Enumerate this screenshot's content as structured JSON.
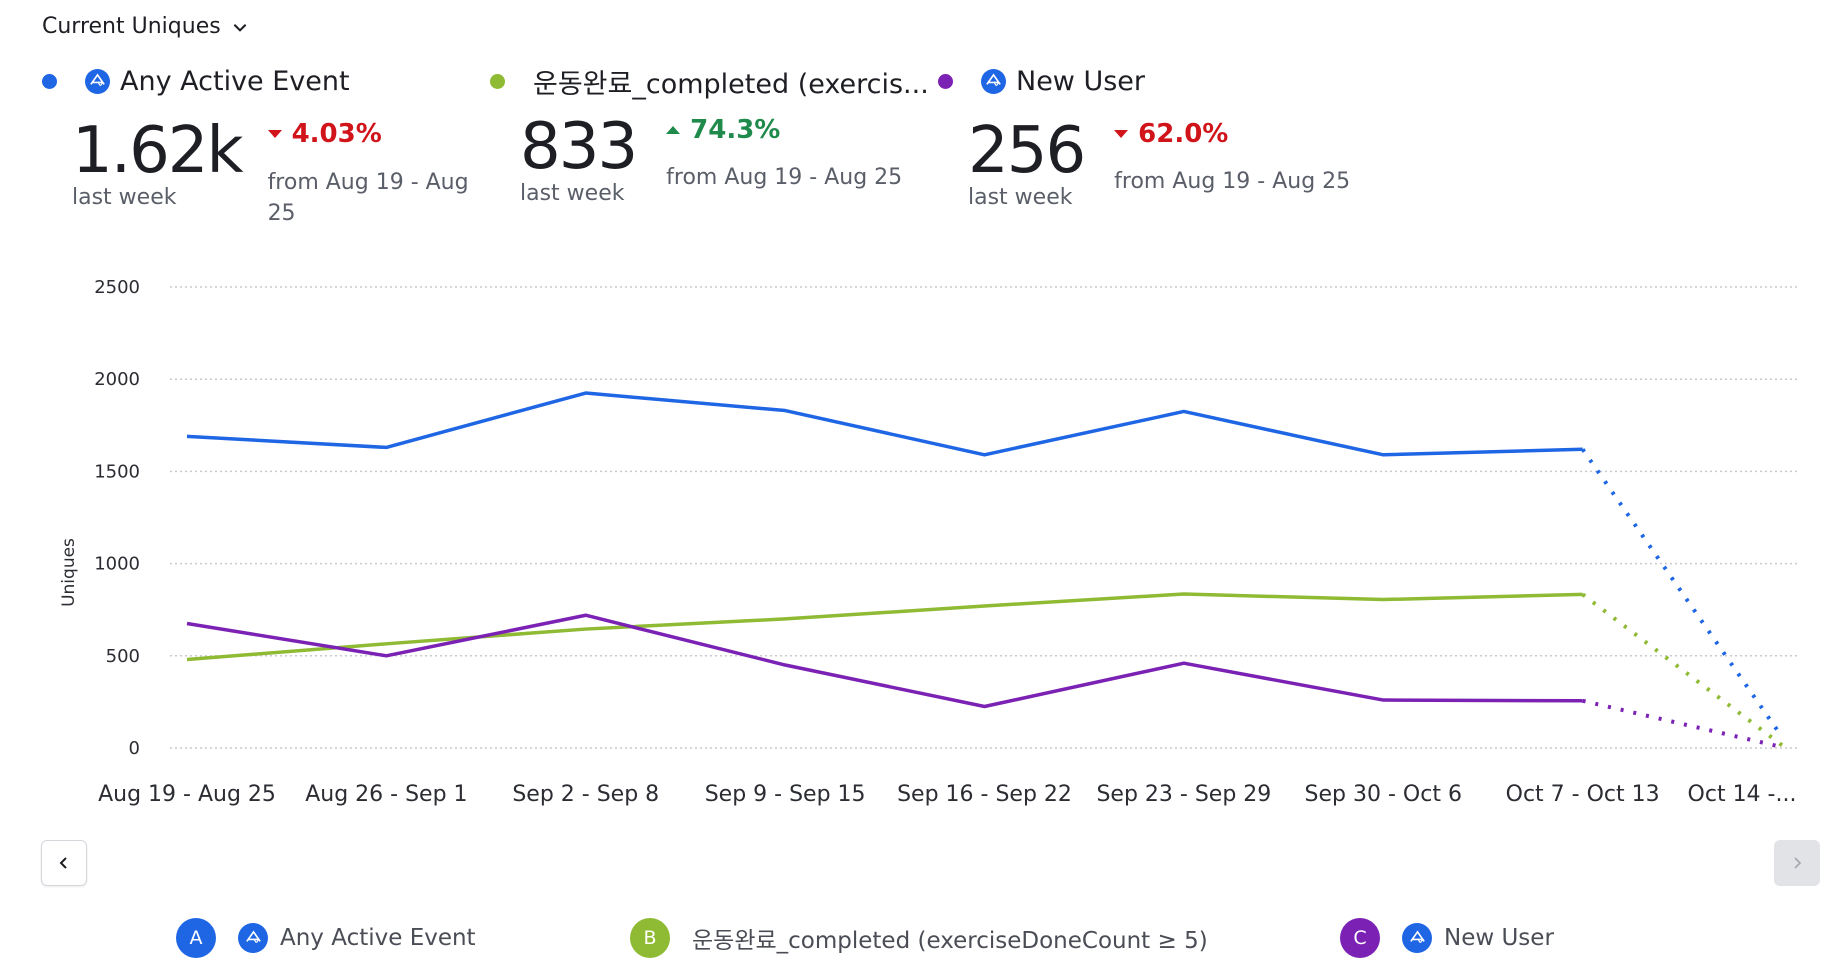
{
  "metric_selector": {
    "label": "Current Uniques"
  },
  "colors": {
    "blue": "#1f66e5",
    "green": "#8fba33",
    "purple": "#7b22b4",
    "down": "#d0141a",
    "up": "#1f8a4c"
  },
  "kpis": [
    {
      "name": "Any Active Event",
      "has_amp_icon": true,
      "value": "1.62k",
      "period": "last week",
      "delta": "4.03%",
      "direction": "down",
      "compare": "from Aug 19 - Aug 25",
      "color": "#1f66e5"
    },
    {
      "name": "운동완료_completed (exercis...",
      "has_amp_icon": false,
      "value": "833",
      "period": "last week",
      "delta": "74.3%",
      "direction": "up",
      "compare": "from Aug 19 - Aug 25",
      "color": "#8fba33"
    },
    {
      "name": "New User",
      "has_amp_icon": true,
      "value": "256",
      "period": "last week",
      "delta": "62.0%",
      "direction": "down",
      "compare": "from Aug 19 - Aug 25",
      "color": "#7b22b4"
    }
  ],
  "chart_data": {
    "type": "line",
    "title": "",
    "xlabel": "",
    "ylabel": "Uniques",
    "ylim": [
      0,
      2500
    ],
    "yticks": [
      0,
      500,
      1000,
      1500,
      2000,
      2500
    ],
    "grid": true,
    "categories": [
      "Aug 19 - Aug 25",
      "Aug 26 - Sep 1",
      "Sep 2 - Sep 8",
      "Sep 9 - Sep 15",
      "Sep 16 - Sep 22",
      "Sep 23 - Sep 29",
      "Sep 30 - Oct 6",
      "Oct 7 - Oct 13",
      "Oct 14 -..."
    ],
    "incomplete_last_period": true,
    "series": [
      {
        "name": "Any Active Event",
        "color": "#1f66e5",
        "values": [
          1690,
          1630,
          1925,
          1830,
          1590,
          1825,
          1590,
          1620,
          60
        ]
      },
      {
        "name": "운동완료_completed (exerciseDoneCount ≥ 5)",
        "color": "#8fba33",
        "values": [
          480,
          565,
          645,
          700,
          770,
          835,
          805,
          833,
          15
        ]
      },
      {
        "name": "New User",
        "color": "#7b22b4",
        "values": [
          675,
          500,
          720,
          450,
          225,
          460,
          260,
          256,
          5
        ]
      }
    ]
  },
  "legend": [
    {
      "badge": "A",
      "label": "Any Active Event",
      "color": "#1f66e5",
      "has_amp_icon": true
    },
    {
      "badge": "B",
      "label": "운동완료_completed (exerciseDoneCount ≥ 5)",
      "color": "#8fba33",
      "has_amp_icon": false
    },
    {
      "badge": "C",
      "label": "New User",
      "color": "#7b22b4",
      "has_amp_icon": true
    }
  ],
  "nav": {
    "prev_icon": "chevron-left-icon",
    "next_icon": "chevron-right-icon"
  }
}
